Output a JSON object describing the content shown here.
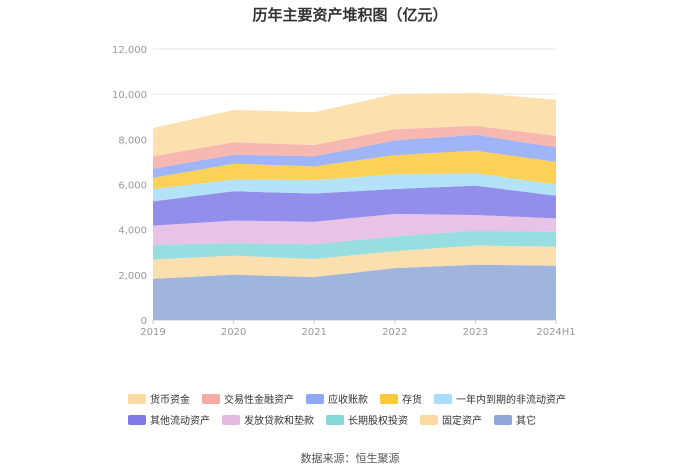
{
  "chart_data": {
    "type": "area",
    "stacked": true,
    "title": "历年主要资产堆积图（亿元）",
    "categories": [
      "2019",
      "2020",
      "2021",
      "2022",
      "2023",
      "2024H1"
    ],
    "ylim": [
      0,
      12000
    ],
    "yticks": [
      "0",
      "2,000",
      "4,000",
      "6,000",
      "8,000",
      "10,000",
      "12,000"
    ],
    "ytick_values": [
      0,
      2000,
      4000,
      6000,
      8000,
      10000,
      12000
    ],
    "grid": true,
    "series": [
      {
        "name": "其它",
        "color": "#8fa8d8",
        "values": [
          1830,
          2000,
          1900,
          2300,
          2450,
          2400
        ]
      },
      {
        "name": "固定资产",
        "color": "#fcd9a0",
        "values": [
          850,
          850,
          800,
          750,
          850,
          850
        ]
      },
      {
        "name": "长期股权投资",
        "color": "#86d7d9",
        "values": [
          650,
          550,
          650,
          650,
          650,
          650
        ]
      },
      {
        "name": "发放贷款和垫款",
        "color": "#e5b9e0",
        "values": [
          850,
          1000,
          1000,
          1000,
          700,
          600
        ]
      },
      {
        "name": "其他流动资产",
        "color": "#7e7be8",
        "values": [
          1070,
          1300,
          1250,
          1100,
          1300,
          1000
        ]
      },
      {
        "name": "一年内到期的非流动资产",
        "color": "#a6ddf8",
        "values": [
          550,
          520,
          600,
          650,
          550,
          500
        ]
      },
      {
        "name": "存货",
        "color": "#fbc93a",
        "values": [
          500,
          700,
          600,
          850,
          1000,
          1000
        ]
      },
      {
        "name": "应收账款",
        "color": "#8fa7f7",
        "values": [
          400,
          400,
          450,
          650,
          700,
          650
        ]
      },
      {
        "name": "交易性金融资产",
        "color": "#f7aba5",
        "values": [
          550,
          550,
          500,
          500,
          400,
          500
        ]
      },
      {
        "name": "货币资金",
        "color": "#fcdba0",
        "values": [
          1250,
          1430,
          1450,
          1550,
          1450,
          1600
        ]
      }
    ]
  },
  "legend": {
    "row1": [
      {
        "label": "货币资金",
        "color": "#fcdba0"
      },
      {
        "label": "交易性金融资产",
        "color": "#f7aba5"
      },
      {
        "label": "应收账款",
        "color": "#8fa7f7"
      },
      {
        "label": "存货",
        "color": "#fbc93a"
      },
      {
        "label": "一年内到期的非流动资产",
        "color": "#a6ddf8"
      }
    ],
    "row2": [
      {
        "label": "其他流动资产",
        "color": "#7e7be8"
      },
      {
        "label": "发放贷款和垫款",
        "color": "#e5b9e0"
      },
      {
        "label": "长期股权投资",
        "color": "#86d7d9"
      },
      {
        "label": "固定资产",
        "color": "#fcd9a0"
      },
      {
        "label": "其它",
        "color": "#8fa8d8"
      }
    ]
  },
  "source": "数据来源：恒生聚源"
}
